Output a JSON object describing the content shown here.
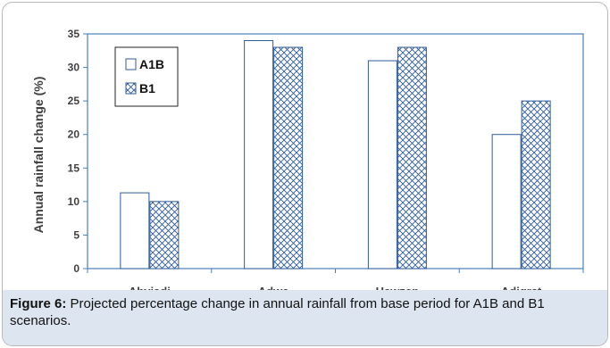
{
  "chart_data": {
    "type": "bar",
    "title": "",
    "xlabel": "",
    "ylabel": "Annual rainfall change (%)",
    "ylim": [
      0,
      35
    ],
    "yticks": [
      0,
      5,
      10,
      15,
      20,
      25,
      30,
      35
    ],
    "categories": [
      "Abyiadi",
      "Adwa",
      "Hawzen",
      "Adigrat"
    ],
    "series": [
      {
        "name": "A1B",
        "values": [
          11.3,
          34,
          31,
          20
        ],
        "fill": "#ffffff",
        "pattern": "none"
      },
      {
        "name": "B1",
        "values": [
          10,
          33,
          33,
          25
        ],
        "fill": "#ffffff",
        "pattern": "crosshatch"
      }
    ],
    "legend": "top-left, inside plot",
    "grid": false,
    "colors": {
      "axis": "#4a7ebb",
      "bar_stroke": "#2e5b98",
      "text": "#404040"
    }
  },
  "caption": {
    "label": "Figure 6:",
    "text": " Projected percentage change in annual rainfall from base period for A1B and B1 scenarios."
  }
}
